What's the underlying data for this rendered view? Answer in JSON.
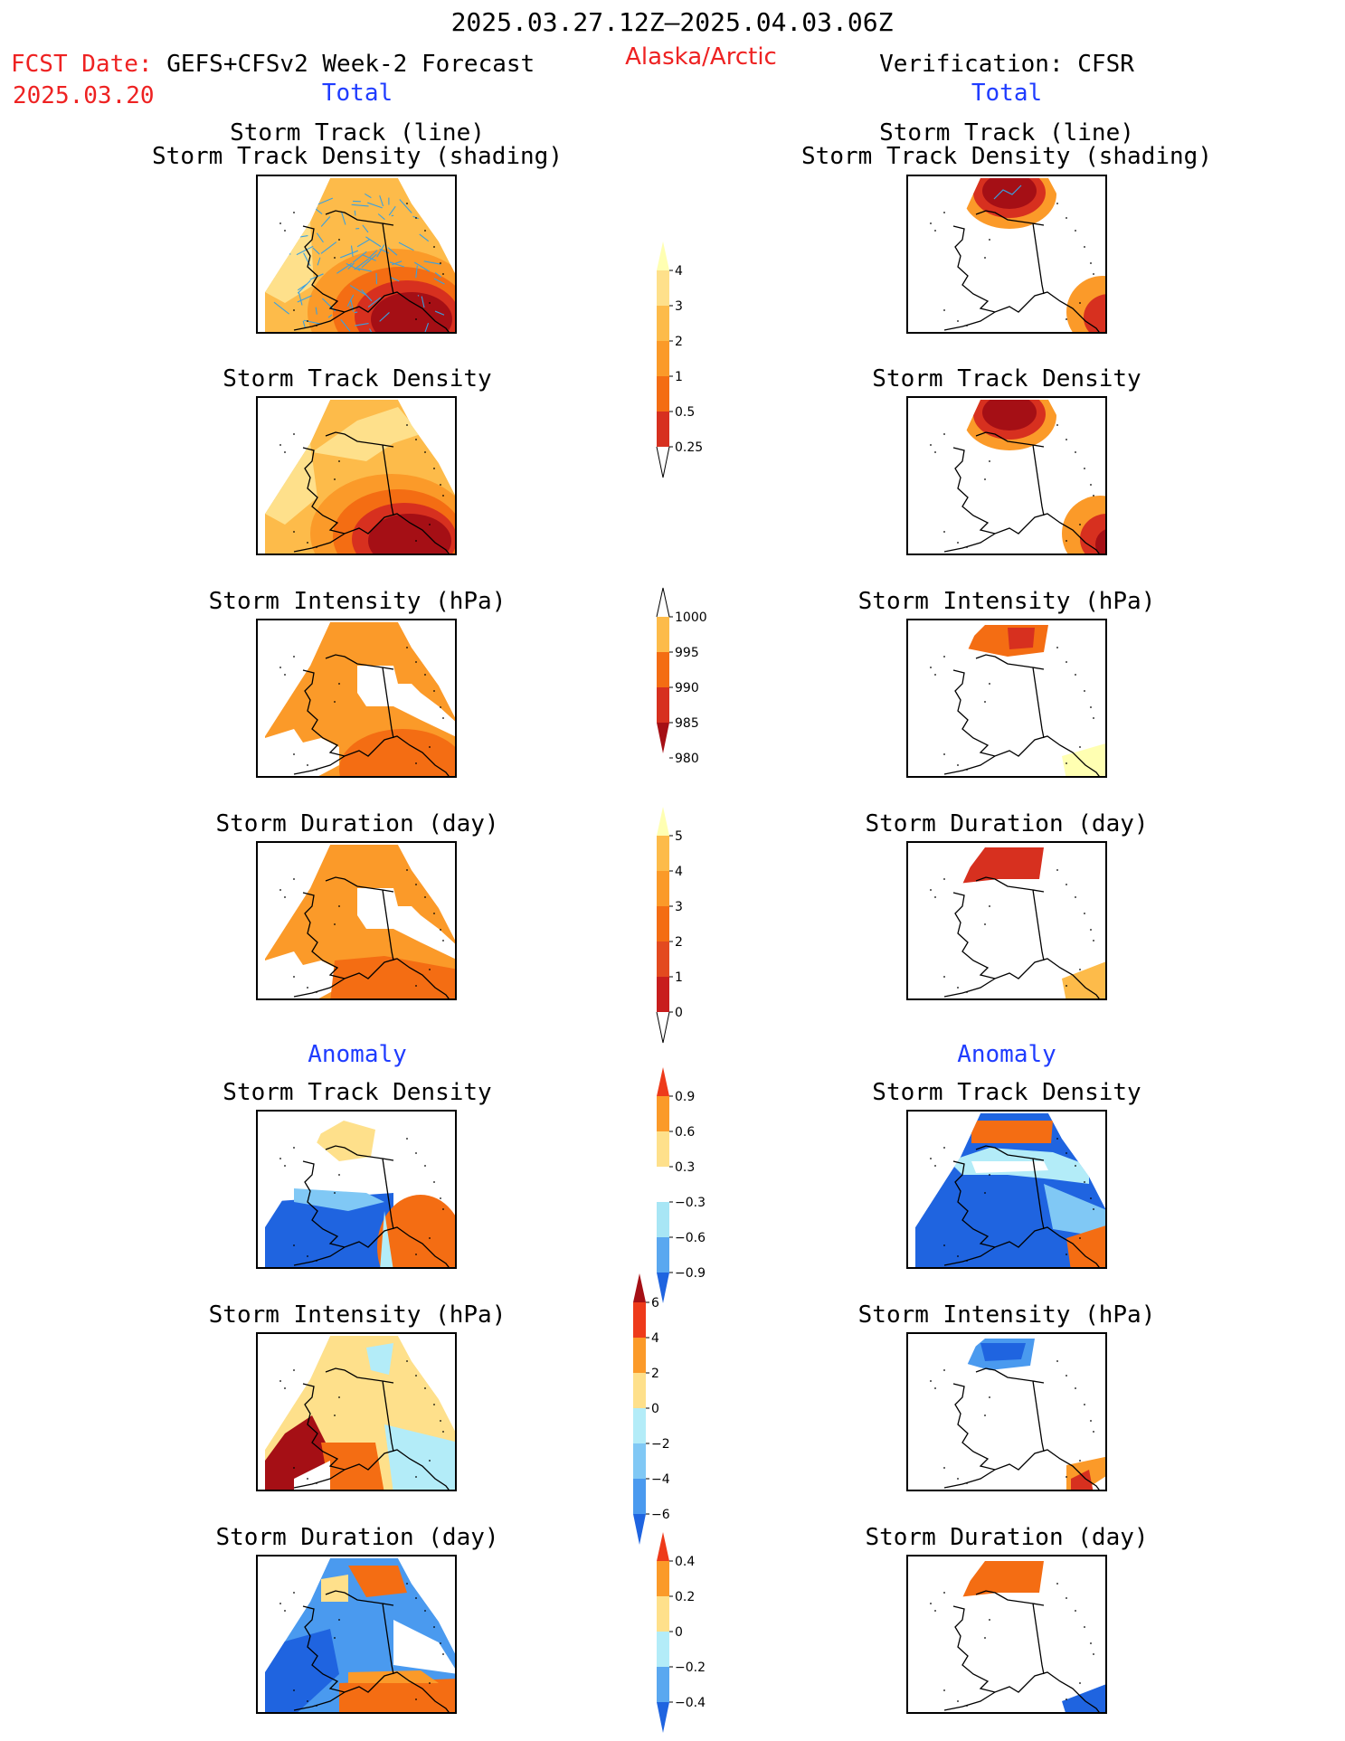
{
  "header": {
    "date_range": "2025.03.27.12Z–2025.04.03.06Z",
    "region": "Alaska/Arctic",
    "fcst_label": "FCST Date:",
    "fcst_model": "GEFS+CFSv2 Week-2 Forecast",
    "fcst_date": "2025.03.20",
    "verification": "Verification: CFSR"
  },
  "sections": {
    "total": "Total",
    "anomaly": "Anomaly"
  },
  "panel_titles": {
    "track_line": "Storm Track (line)",
    "track_shading": "Storm Track Density (shading)",
    "density": "Storm Track Density",
    "intensity": "Storm Intensity (hPa)",
    "duration": "Storm Duration (day)"
  },
  "colorbars": {
    "density_total": {
      "labels": [
        "0.25",
        "0.5",
        "1",
        "2",
        "3",
        "4"
      ],
      "colors": [
        "#ffffb2",
        "#fee08b",
        "#fdbb4a",
        "#fb9a29",
        "#f46d13",
        "#d7301f",
        "#a50f15"
      ]
    },
    "intensity_total": {
      "labels": [
        "1000",
        "995",
        "990",
        "985",
        "980"
      ],
      "colors": [
        "#ffffb2",
        "#fdbb4a",
        "#f46d13",
        "#d7301f",
        "#a50f15"
      ]
    },
    "duration_total": {
      "labels": [
        "0",
        "1",
        "2",
        "3",
        "4",
        "5"
      ],
      "colors": [
        "#ffffb2",
        "#fdbb4a",
        "#fb9a29",
        "#f46d13",
        "#e34a1f",
        "#c81d1d",
        "#a50f15"
      ]
    },
    "density_anom": {
      "labels": [
        "0.9",
        "0.6",
        "0.3",
        "−0.3",
        "−0.6",
        "−0.9"
      ],
      "colors": [
        "#ee3a1a",
        "#fb9a29",
        "#fee08b",
        "#ffffff",
        "#a8e6f5",
        "#5aa8f0",
        "#1f64e0"
      ]
    },
    "intensity_anom": {
      "labels": [
        "6",
        "4",
        "2",
        "0",
        "−2",
        "−4",
        "−6"
      ],
      "colors": [
        "#a50f15",
        "#ee3a1a",
        "#fb9a29",
        "#fee08b",
        "#b3ecf8",
        "#80c8f5",
        "#4a9aef",
        "#1f64e0"
      ]
    },
    "duration_anom": {
      "labels": [
        "0.4",
        "0.2",
        "0",
        "−0.2",
        "−0.4"
      ],
      "colors": [
        "#ee3a1a",
        "#fb9a29",
        "#fee08b",
        "#b3ecf8",
        "#5aa8f0",
        "#1f64e0"
      ]
    }
  }
}
